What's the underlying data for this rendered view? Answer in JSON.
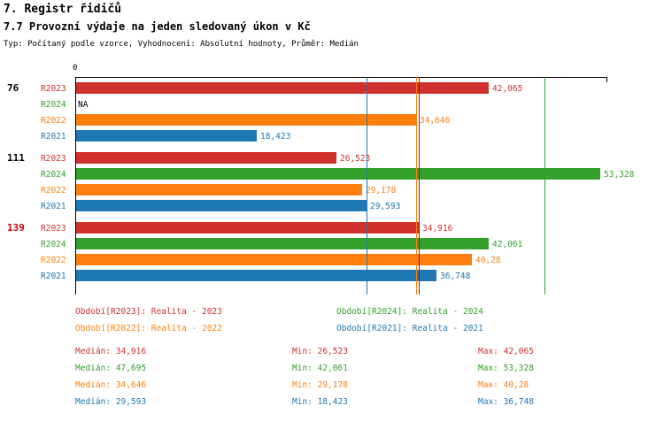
{
  "header": {
    "title": "7. Registr řidičů",
    "meta": "Typ: Počítaný podle vzorce, Vyhodnocení: Absolutní hodnoty, Průměr: Medián"
  },
  "series_colors": {
    "R2023": "#d0312d",
    "R2024": "#33a02c",
    "R2022": "#ff7f0e",
    "R2021": "#1f77b4"
  },
  "chart_data": {
    "type": "bar",
    "orientation": "horizontal",
    "title": "7.7 Provozní výdaje na jeden sledovaný úkon v Kč",
    "x_axis": {
      "origin_label": "0",
      "max": 54000,
      "grid": false
    },
    "series_order": [
      "R2023",
      "R2024",
      "R2022",
      "R2021"
    ],
    "groups": [
      {
        "label": "76",
        "label_color": "#000000",
        "bars": [
          {
            "series": "R2023",
            "value": 42065,
            "display": "42,065"
          },
          {
            "series": "R2024",
            "value": null,
            "display": "NA"
          },
          {
            "series": "R2022",
            "value": 34646,
            "display": "34,646"
          },
          {
            "series": "R2021",
            "value": 18423,
            "display": "18,423"
          }
        ]
      },
      {
        "label": "111",
        "label_color": "#000000",
        "bars": [
          {
            "series": "R2023",
            "value": 26523,
            "display": "26,523"
          },
          {
            "series": "R2024",
            "value": 53328,
            "display": "53,328"
          },
          {
            "series": "R2022",
            "value": 29178,
            "display": "29,178"
          },
          {
            "series": "R2021",
            "value": 29593,
            "display": "29,593"
          }
        ]
      },
      {
        "label": "139",
        "label_color": "#cc0000",
        "bars": [
          {
            "series": "R2023",
            "value": 34916,
            "display": "34,916"
          },
          {
            "series": "R2024",
            "value": 42061,
            "display": "42,061"
          },
          {
            "series": "R2022",
            "value": 40280,
            "display": "40,28"
          },
          {
            "series": "R2021",
            "value": 36748,
            "display": "36,748"
          }
        ]
      }
    ],
    "medians": [
      {
        "series": "R2023",
        "value": 34916,
        "line_color": "#9e1b17"
      },
      {
        "series": "R2024",
        "value": 47695
      },
      {
        "series": "R2022",
        "value": 34646
      },
      {
        "series": "R2021",
        "value": 29593
      }
    ]
  },
  "legend": {
    "entries": [
      {
        "series": "R2023",
        "text": "Období[R2023]: Realita - 2023"
      },
      {
        "series": "R2024",
        "text": "Období[R2024]: Realita - 2024"
      },
      {
        "series": "R2022",
        "text": "Období[R2022]: Realita - 2022"
      },
      {
        "series": "R2021",
        "text": "Období[R2021]: Realita - 2021"
      }
    ]
  },
  "stats": {
    "rows": [
      {
        "series": "R2023",
        "median": "Medián: 34,916",
        "min": "Min: 26,523",
        "max": "Max: 42,065"
      },
      {
        "series": "R2024",
        "median": "Medián: 47,695",
        "min": "Min: 42,061",
        "max": "Max: 53,328"
      },
      {
        "series": "R2022",
        "median": "Medián: 34,646",
        "min": "Min: 29,178",
        "max": "Max: 40,28"
      },
      {
        "series": "R2021",
        "median": "Medián: 29,593",
        "min": "Min: 18,423",
        "max": "Max: 36,748"
      }
    ]
  }
}
